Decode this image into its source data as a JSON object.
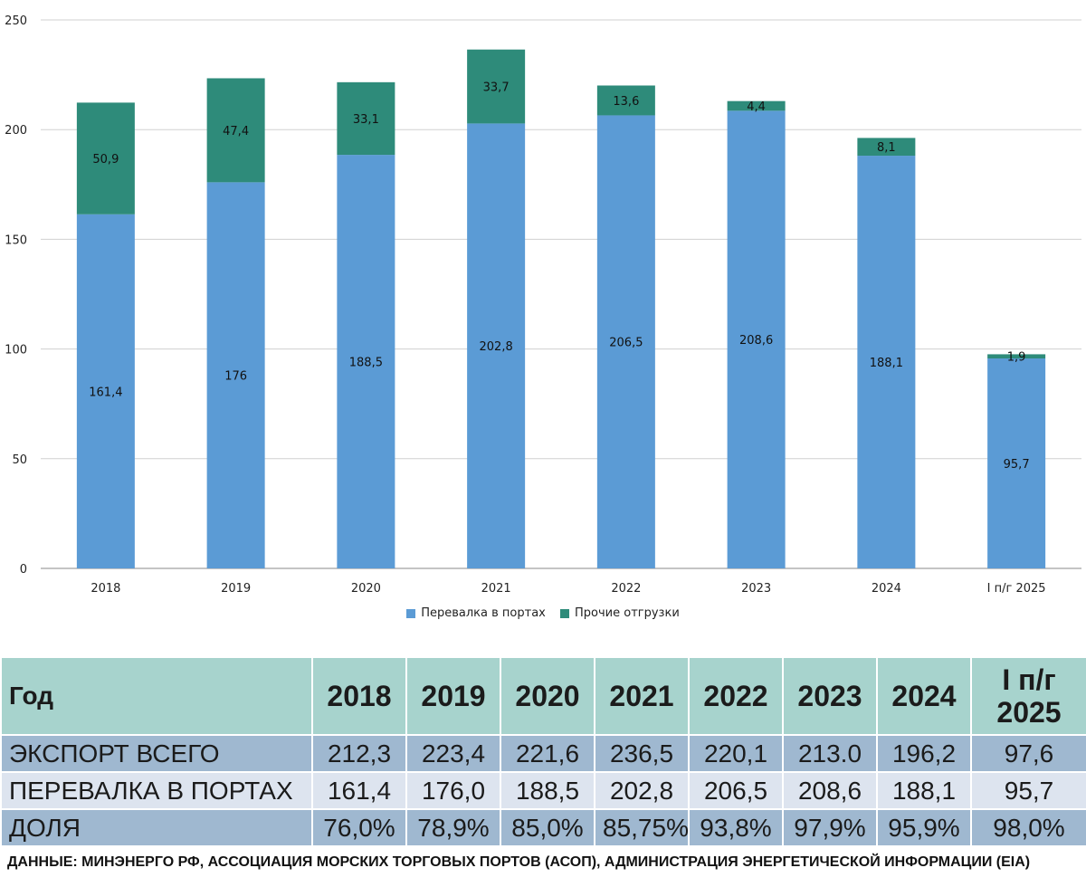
{
  "chart_data": {
    "type": "bar",
    "stacked": true,
    "categories": [
      "2018",
      "2019",
      "2020",
      "2021",
      "2022",
      "2023",
      "2024",
      "I п/г 2025"
    ],
    "series": [
      {
        "name": "Перевалка в портах",
        "color": "#5b9bd5",
        "values": [
          161.4,
          176,
          188.5,
          202.8,
          206.5,
          208.6,
          188.1,
          95.7
        ],
        "labels": [
          "161,4",
          "176",
          "188,5",
          "202,8",
          "206,5",
          "208,6",
          "188,1",
          "95,7"
        ]
      },
      {
        "name": "Прочие отгрузки",
        "color": "#2e8b7a",
        "values": [
          50.9,
          47.4,
          33.1,
          33.7,
          13.6,
          4.4,
          8.1,
          1.9
        ],
        "labels": [
          "50,9",
          "47,4",
          "33,1",
          "33,7",
          "13,6",
          "4,4",
          "8,1",
          "1,9"
        ]
      }
    ],
    "yticks": [
      0,
      50,
      100,
      150,
      200,
      250
    ],
    "ylim": [
      0,
      250
    ],
    "grid": true,
    "legend": "bottom-center",
    "title": "",
    "xlabel": "",
    "ylabel": ""
  },
  "table": {
    "headers": [
      "Год",
      "2018",
      "2019",
      "2020",
      "2021",
      "2022",
      "2023",
      "2024",
      "I п/г 2025"
    ],
    "rows": [
      {
        "label": "ЭКСПОРТ ВСЕГО",
        "values": [
          "212,3",
          "223,4",
          "221,6",
          "236,5",
          "220,1",
          "213.0",
          "196,2",
          "97,6"
        ]
      },
      {
        "label": "ПЕРЕВАЛКА В ПОРТАХ",
        "values": [
          "161,4",
          "176,0",
          "188,5",
          "202,8",
          "206,5",
          "208,6",
          "188,1",
          "95,7"
        ]
      },
      {
        "label": "ДОЛЯ",
        "values": [
          "76,0%",
          "78,9%",
          "85,0%",
          "85,75%",
          "93,8%",
          "97,9%",
          "95,9%",
          "98,0%"
        ]
      }
    ]
  },
  "source": "ДАННЫЕ: МИНЭНЕРГО РФ, АССОЦИАЦИЯ МОРСКИХ ТОРГОВЫХ ПОРТОВ (АСОП), АДМИНИСТРАЦИЯ ЭНЕРГЕТИЧЕСКОЙ ИНФОРМАЦИИ (EIA)"
}
